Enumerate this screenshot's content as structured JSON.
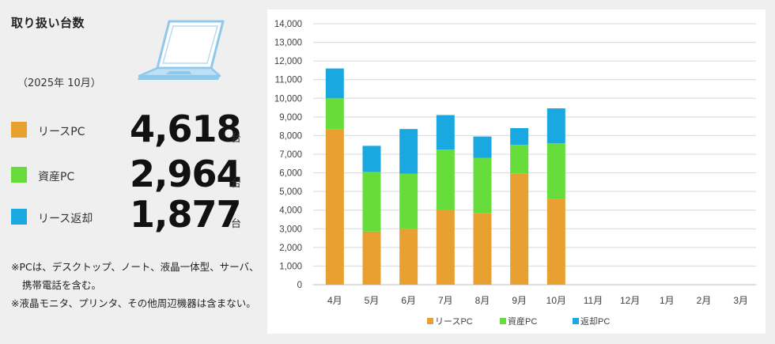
{
  "summary": {
    "title": "取り扱い台数",
    "period": "（2025年 10月）",
    "items": [
      {
        "label": "リースPC",
        "value": "4,618",
        "unit": "台",
        "color": "#e8a030"
      },
      {
        "label": "資産PC",
        "value": "2,964",
        "unit": "台",
        "color": "#66dd3a"
      },
      {
        "label": "リース返却",
        "value": "1,877",
        "unit": "台",
        "color": "#1aa8e0"
      }
    ],
    "notes": [
      "※PCは、デスクトップ、ノート、液晶一体型、サーバ、携帯電話を含む。",
      "※液晶モニタ、プリンタ、その他周辺機器は含まない。"
    ]
  },
  "chart_data": {
    "type": "bar",
    "stacked": true,
    "title": "",
    "xlabel": "",
    "ylabel": "",
    "ylim": [
      0,
      14000
    ],
    "yticks": [
      0,
      1000,
      2000,
      3000,
      4000,
      5000,
      6000,
      7000,
      8000,
      9000,
      10000,
      11000,
      12000,
      13000,
      14000
    ],
    "ytick_labels": [
      "0",
      "1,000",
      "2,000",
      "3,000",
      "4,000",
      "5,000",
      "6,000",
      "7,000",
      "8,000",
      "9,000",
      "10,000",
      "11,000",
      "12,000",
      "13,000",
      "14,000"
    ],
    "grid": true,
    "legend_position": "bottom",
    "categories": [
      "4月",
      "5月",
      "6月",
      "7月",
      "8月",
      "9月",
      "10月",
      "11月",
      "12月",
      "1月",
      "2月",
      "3月"
    ],
    "series": [
      {
        "name": "リースPC",
        "color": "#e8a030",
        "values": [
          8350,
          2850,
          3000,
          4000,
          3850,
          5950,
          4618,
          null,
          null,
          null,
          null,
          null
        ]
      },
      {
        "name": "資産PC",
        "color": "#66dd3a",
        "values": [
          1650,
          3200,
          2950,
          3250,
          2950,
          1550,
          2964,
          null,
          null,
          null,
          null,
          null
        ]
      },
      {
        "name": "返却PC",
        "color": "#1aa8e0",
        "values": [
          1600,
          1400,
          2400,
          1850,
          1150,
          900,
          1877,
          null,
          null,
          null,
          null,
          null
        ]
      }
    ]
  }
}
